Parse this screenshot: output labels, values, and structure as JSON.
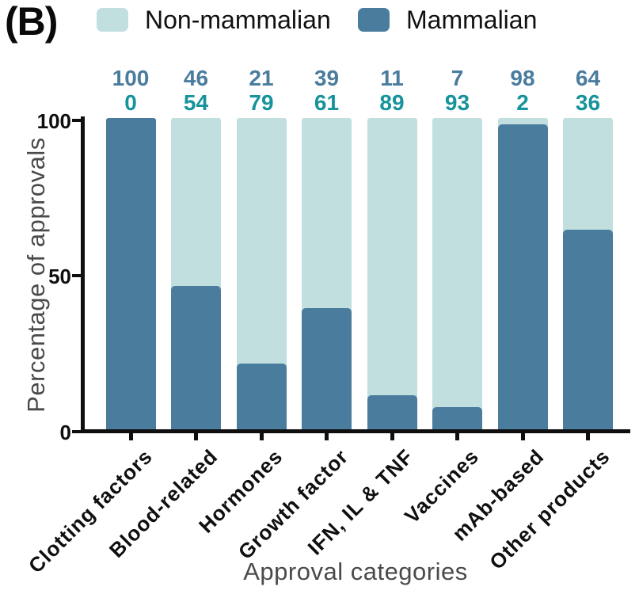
{
  "figure": {
    "panel_label": "(B)"
  },
  "legend": {
    "items": [
      {
        "label": "Non-mammalian",
        "color": "#c2dfe0"
      },
      {
        "label": "Mammalian",
        "color": "#4a7c9e"
      }
    ]
  },
  "chart_data": {
    "type": "bar",
    "stacked": true,
    "title": "",
    "xlabel": "Approval categories",
    "ylabel": "Percentage of approvals",
    "ylim": [
      0,
      100
    ],
    "yticks": [
      0,
      50,
      100
    ],
    "grid": false,
    "legend_position": "top",
    "categories": [
      "Clotting factors",
      "Blood-related",
      "Hormones",
      "Growth factor",
      "IFN, IL & TNF",
      "Vaccines",
      "mAb-based",
      "Other products"
    ],
    "series": [
      {
        "name": "Mammalian",
        "values": [
          100,
          46,
          21,
          39,
          11,
          7,
          98,
          64
        ],
        "color": "#4a7c9e",
        "annotation_color": "#4a7c9e"
      },
      {
        "name": "Non-mammalian",
        "values": [
          0,
          54,
          79,
          61,
          89,
          93,
          2,
          36
        ],
        "color": "#c2dfe0",
        "annotation_color": "#17939b"
      }
    ],
    "annotation_rows_note": "Blue top row = Mammalian %, teal second row = Non-mammalian %, shown above each bar"
  }
}
